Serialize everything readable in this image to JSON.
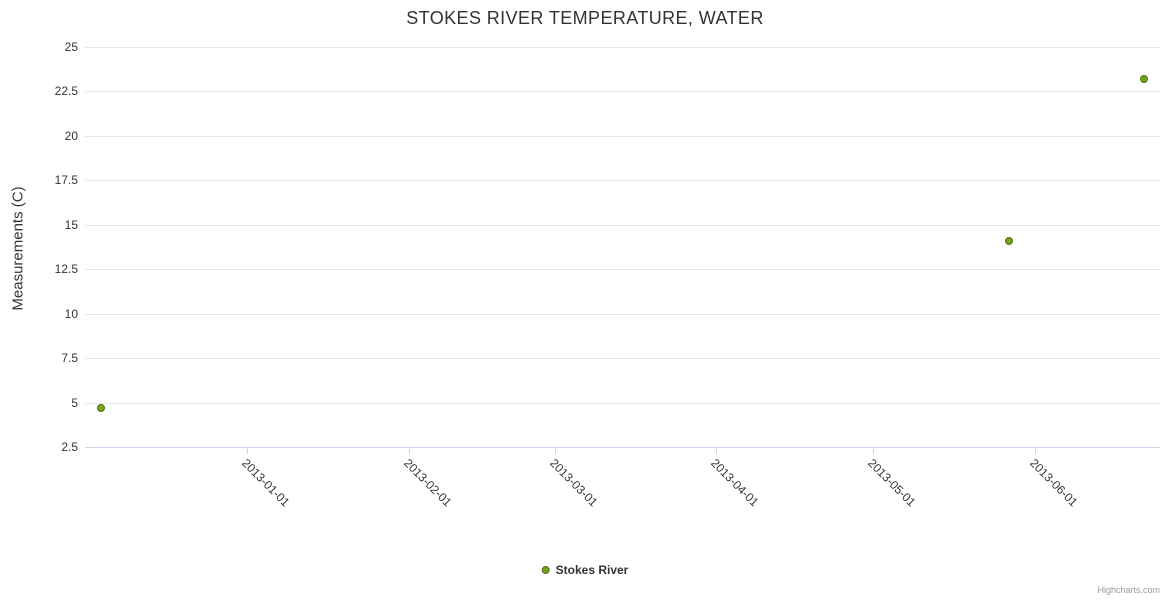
{
  "title": "STOKES RIVER TEMPERATURE, WATER",
  "credit": "Highcharts.com",
  "legend": {
    "series_label": "Stokes River"
  },
  "chart_data": {
    "type": "scatter",
    "title": "STOKES RIVER TEMPERATURE, WATER",
    "xlabel": "",
    "ylabel": "Measurements (C)",
    "ylim": [
      2.5,
      25
    ],
    "yticks": [
      2.5,
      5,
      7.5,
      10,
      12.5,
      15,
      17.5,
      20,
      22.5,
      25
    ],
    "xlim": [
      "2012-12-01",
      "2013-06-25"
    ],
    "xticks": [
      "2013-01-01",
      "2013-02-01",
      "2013-03-01",
      "2013-04-01",
      "2013-05-01",
      "2013-06-01"
    ],
    "grid": "horizontal",
    "legend_position": "bottom-center",
    "series": [
      {
        "name": "Stokes River",
        "color": "#74A122",
        "marker_border": "#4E7312",
        "points": [
          {
            "x": "2012-12-04",
            "y": 4.7
          },
          {
            "x": "2013-05-27",
            "y": 14.1
          },
          {
            "x": "2013-06-22",
            "y": 23.2
          }
        ]
      }
    ]
  }
}
